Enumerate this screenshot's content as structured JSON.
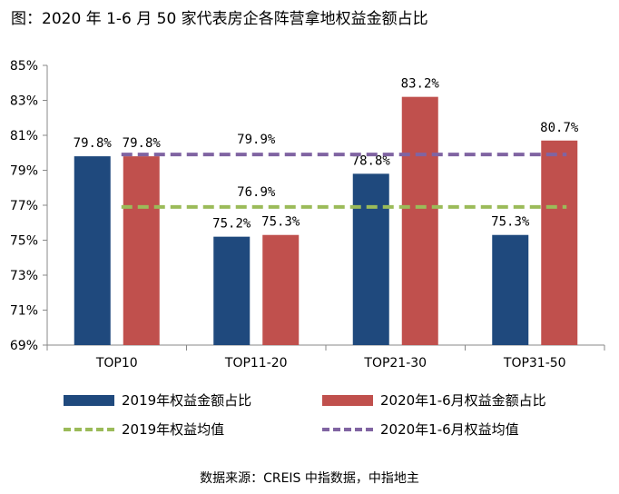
{
  "title": "图：2020 年 1-6 月 50 家代表房企各阵营拿地权益金额占比",
  "source": "数据来源：CREIS 中指数据，中指地主",
  "colors": {
    "bar2019": "#1f497d",
    "bar2020": "#c0504d",
    "avg2019": "#9bbb59",
    "avg2020": "#8064a2",
    "axis": "#888888"
  },
  "chart_data": {
    "type": "bar",
    "categories": [
      "TOP10",
      "TOP11-20",
      "TOP21-30",
      "TOP31-50"
    ],
    "series": [
      {
        "name": "2019年权益金额占比",
        "values": [
          79.8,
          75.2,
          78.8,
          75.3
        ],
        "labels": [
          "79.8%",
          "75.2%",
          "78.8%",
          "75.3%"
        ]
      },
      {
        "name": "2020年1-6月权益金额占比",
        "values": [
          79.8,
          75.3,
          83.2,
          80.7
        ],
        "labels": [
          "79.8%",
          "75.3%",
          "83.2%",
          "80.7%"
        ]
      }
    ],
    "reference_lines": [
      {
        "name": "2019年权益均值",
        "value": 76.9,
        "label": "76.9%",
        "style": "dashed"
      },
      {
        "name": "2020年1-6月权益均值",
        "value": 79.9,
        "label": "79.9%",
        "style": "dashed"
      }
    ],
    "ylim": [
      69,
      85
    ],
    "yticks": [
      69,
      71,
      73,
      75,
      77,
      79,
      81,
      83,
      85
    ],
    "ytick_labels": [
      "69%",
      "71%",
      "73%",
      "75%",
      "77%",
      "79%",
      "81%",
      "83%",
      "85%"
    ],
    "legend": "bottom",
    "grid": false
  }
}
